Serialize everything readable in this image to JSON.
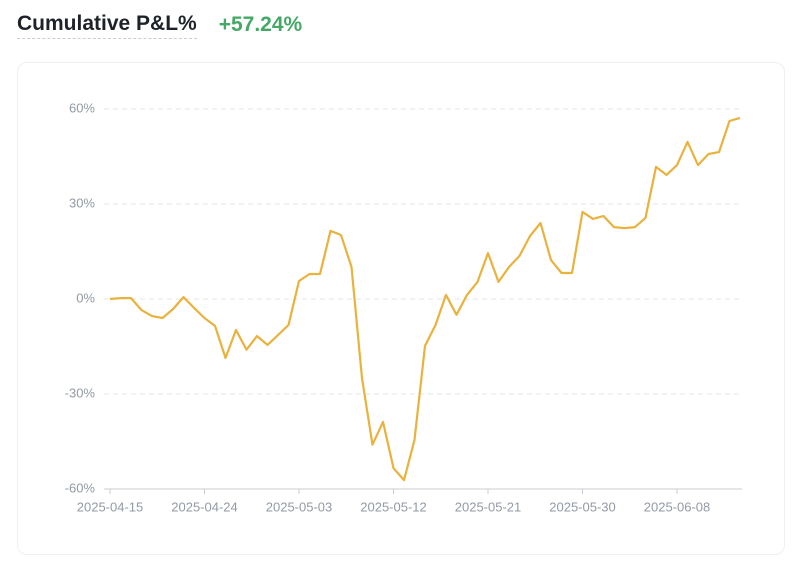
{
  "chart_data": {
    "type": "line",
    "title": "Cumulative P&L%",
    "subtitle": "+57.24%",
    "categories": [
      "2025-04-15",
      null,
      null,
      null,
      null,
      null,
      null,
      null,
      null,
      "2025-04-24",
      null,
      null,
      null,
      null,
      null,
      null,
      null,
      null,
      "2025-05-03",
      null,
      null,
      null,
      null,
      null,
      null,
      null,
      null,
      "2025-05-12",
      null,
      null,
      null,
      null,
      null,
      null,
      null,
      null,
      "2025-05-21",
      null,
      null,
      null,
      null,
      null,
      null,
      null,
      null,
      "2025-05-30",
      null,
      null,
      null,
      null,
      null,
      null,
      null,
      null,
      "2025-06-08",
      null,
      null,
      null,
      null,
      null,
      null
    ],
    "values": [
      0,
      0.3,
      0.3,
      -3.5,
      -5.4,
      -6,
      -3.2,
      0.6,
      -2.8,
      -6,
      -8.5,
      -18.6,
      -9.8,
      -16,
      -11.7,
      -14.5,
      -11.4,
      -8.2,
      5.7,
      7.9,
      7.9,
      21.5,
      20.2,
      10.1,
      -25,
      -46,
      -38.8,
      -53.4,
      -57.2,
      -44.5,
      -14.8,
      -8.2,
      1.3,
      -5,
      1.3,
      5.4,
      14.5,
      5.4,
      10.1,
      13.6,
      19.9,
      24,
      12.3,
      8.2,
      8.2,
      27.5,
      25.3,
      26.2,
      22.7,
      22.4,
      22.7,
      25.6,
      41.7,
      39.2,
      42.3,
      49.6,
      42.3,
      45.8,
      46.4,
      56.2,
      57.2
    ],
    "color": "#e9b23e",
    "ylim": [
      -60,
      60
    ],
    "yticks": [
      {
        "value": -60,
        "label": "-60%"
      },
      {
        "value": -30,
        "label": "-30%"
      },
      {
        "value": 0,
        "label": "0%"
      },
      {
        "value": 30,
        "label": "30%"
      },
      {
        "value": 60,
        "label": "60%"
      }
    ],
    "grid": true
  }
}
